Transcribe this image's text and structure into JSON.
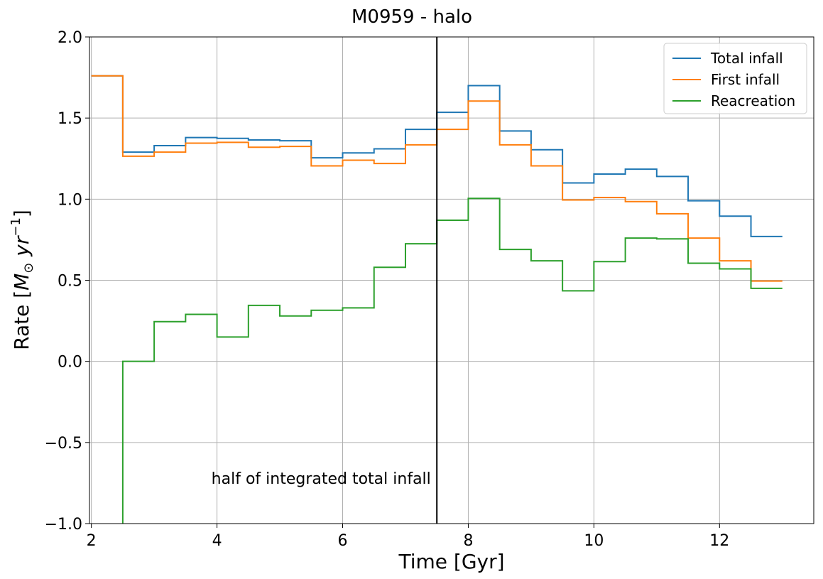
{
  "chart_data": {
    "type": "line",
    "step": "post",
    "title": "M0959 - halo",
    "xlabel": "Time [Gyr]",
    "ylabel_parts": [
      "Rate [",
      "M",
      "⊙",
      " yr",
      "−1",
      "]"
    ],
    "xlim": [
      1.97,
      13.5
    ],
    "ylim": [
      -1.0,
      2.0
    ],
    "xticks": [
      2,
      4,
      6,
      8,
      10,
      12
    ],
    "xtick_labels": [
      "2",
      "4",
      "6",
      "8",
      "10",
      "12"
    ],
    "yticks": [
      -1.0,
      -0.5,
      0.0,
      0.5,
      1.0,
      1.5,
      2.0
    ],
    "ytick_labels": [
      "−1.0",
      "−0.5",
      "0.0",
      "0.5",
      "1.0",
      "1.5",
      "2.0"
    ],
    "grid": true,
    "legend_position": "top-right",
    "x": [
      2.0,
      2.5,
      3.0,
      3.5,
      4.0,
      4.5,
      5.0,
      5.5,
      6.0,
      6.5,
      7.0,
      7.5,
      8.0,
      8.5,
      9.0,
      9.5,
      10.0,
      10.5,
      11.0,
      11.5,
      12.0,
      12.5,
      13.0
    ],
    "series": [
      {
        "name": "Total infall",
        "color": "#1f77b4",
        "values": [
          1.76,
          1.29,
          1.33,
          1.38,
          1.375,
          1.365,
          1.36,
          1.255,
          1.285,
          1.31,
          1.43,
          1.535,
          1.7,
          1.42,
          1.305,
          1.1,
          1.155,
          1.185,
          1.14,
          0.99,
          0.895,
          0.77,
          0.77
        ]
      },
      {
        "name": "First infall",
        "color": "#ff7f0e",
        "values": [
          1.76,
          1.265,
          1.29,
          1.345,
          1.35,
          1.32,
          1.325,
          1.205,
          1.24,
          1.22,
          1.335,
          1.43,
          1.605,
          1.335,
          1.205,
          0.995,
          1.01,
          0.985,
          0.91,
          0.76,
          0.62,
          0.495,
          0.495
        ]
      },
      {
        "name": "Reacreation",
        "color": "#2ca02c",
        "values": [
          null,
          0.0,
          0.245,
          0.29,
          0.15,
          0.345,
          0.28,
          0.315,
          0.33,
          0.58,
          0.725,
          0.87,
          1.005,
          0.69,
          0.62,
          0.435,
          0.615,
          0.76,
          0.755,
          0.605,
          0.57,
          0.45,
          0.45
        ],
        "drop_to_bottom_at_x": 2.5
      }
    ],
    "vline": {
      "x": 7.5,
      "color": "#000000"
    },
    "annotation": {
      "text": "half of integrated total infall",
      "x": 7.45,
      "y": -0.72
    }
  }
}
